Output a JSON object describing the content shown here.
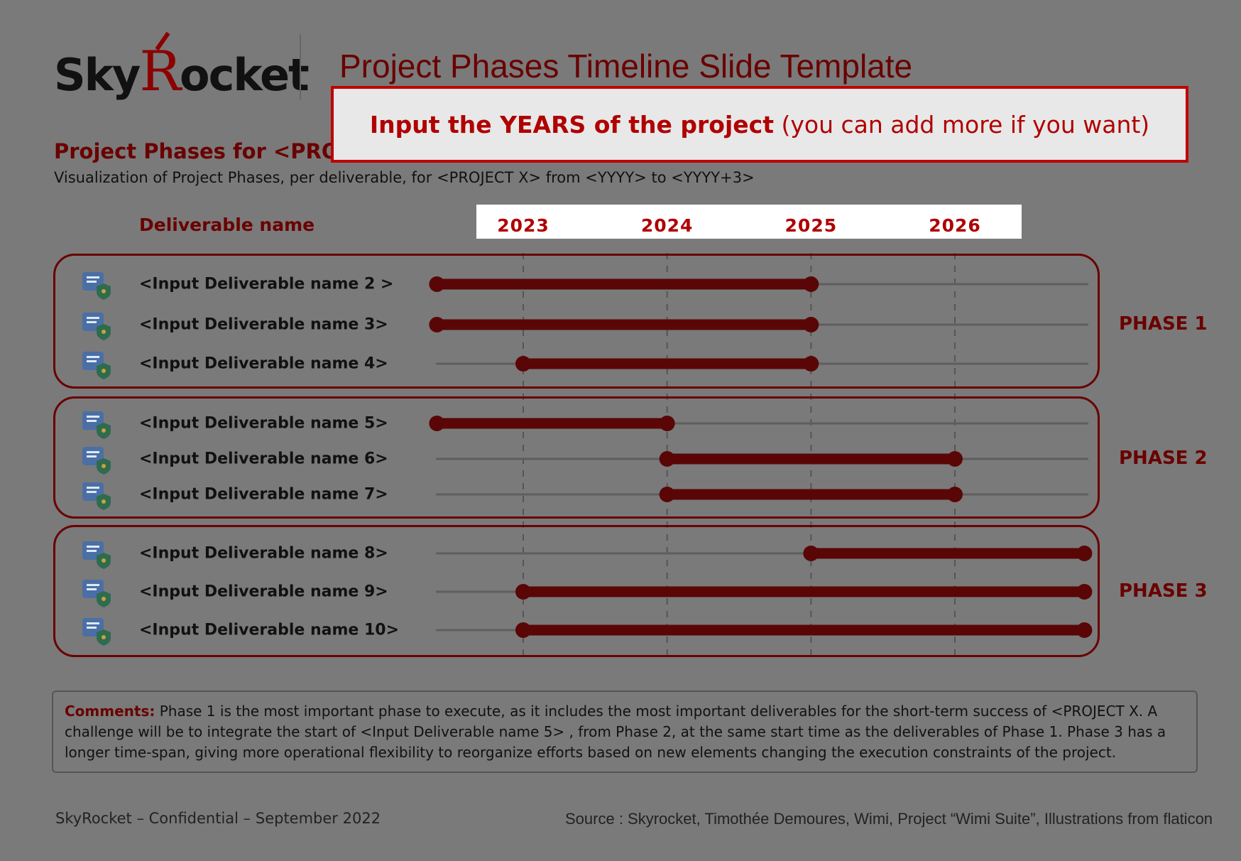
{
  "header": {
    "logo_text_pre": "Sky",
    "logo_text_r": "R",
    "logo_text_post": "ocket",
    "title": "Project Phases Timeline Slide Template"
  },
  "callout": {
    "bold": "Input the YEARS of the project",
    "normal": " (you can add more if you want)"
  },
  "subtitle": "Project Phases for <PROJEC",
  "description": "Visualization of Project Phases, per deliverable, for <PROJECT X> from <YYYY> to <YYYY+3>",
  "deliverable_header": "Deliverable name",
  "years": [
    "2023",
    "2024",
    "2025",
    "2026"
  ],
  "phases": [
    {
      "label": "PHASE 1",
      "deliverables": [
        {
          "name": "<Input Deliverable name 2 >",
          "icon": "email-shield-icon",
          "start": 2022.4,
          "end": 2025.0
        },
        {
          "name": "<Input Deliverable name 3>",
          "icon": "analytics-gear-icon",
          "start": 2022.4,
          "end": 2025.0
        },
        {
          "name": "<Input Deliverable name 4>",
          "icon": "lock-shield-icon",
          "start": 2023.0,
          "end": 2025.0
        }
      ]
    },
    {
      "label": "PHASE 2",
      "deliverables": [
        {
          "name": "<Input Deliverable name 5>",
          "icon": "document-sign-icon",
          "start": 2022.4,
          "end": 2024.0
        },
        {
          "name": "<Input Deliverable name 6>",
          "icon": "secure-document-icon",
          "start": 2024.0,
          "end": 2026.0
        },
        {
          "name": "<Input Deliverable name 7>",
          "icon": "settings-document-icon",
          "start": 2024.0,
          "end": 2026.0
        }
      ]
    },
    {
      "label": "PHASE 3",
      "deliverables": [
        {
          "name": "<Input Deliverable name 8>",
          "icon": "brain-shield-icon",
          "start": 2025.0,
          "end": 2026.9
        },
        {
          "name": "<Input Deliverable name 9>",
          "icon": "document-pen-shield-icon",
          "start": 2023.0,
          "end": 2026.9
        },
        {
          "name": "<Input Deliverable name 10>",
          "icon": "collaboration-icon",
          "start": 2023.0,
          "end": 2026.9
        }
      ]
    }
  ],
  "comments": {
    "label": "Comments:",
    "text": " Phase 1 is the most important phase to execute, as it includes the most important deliverables for the short-term success of <PROJECT X. A challenge will be to integrate the start of <Input Deliverable name 5> , from Phase 2, at the same start time as the deliverables of Phase 1. Phase 3 has a longer time-span, giving more operational flexibility to reorganize efforts based on new elements changing the execution constraints of the project."
  },
  "footer": {
    "left": "SkyRocket – Confidential – September 2022",
    "right": "Source : Skyrocket, Timothée Demoures, Wimi, Project “Wimi Suite”, Illustrations from flaticon"
  },
  "colors": {
    "background": "#7a7a7a",
    "accent": "#6a0000",
    "highlight": "#b00000",
    "bar": "#5a0606"
  }
}
